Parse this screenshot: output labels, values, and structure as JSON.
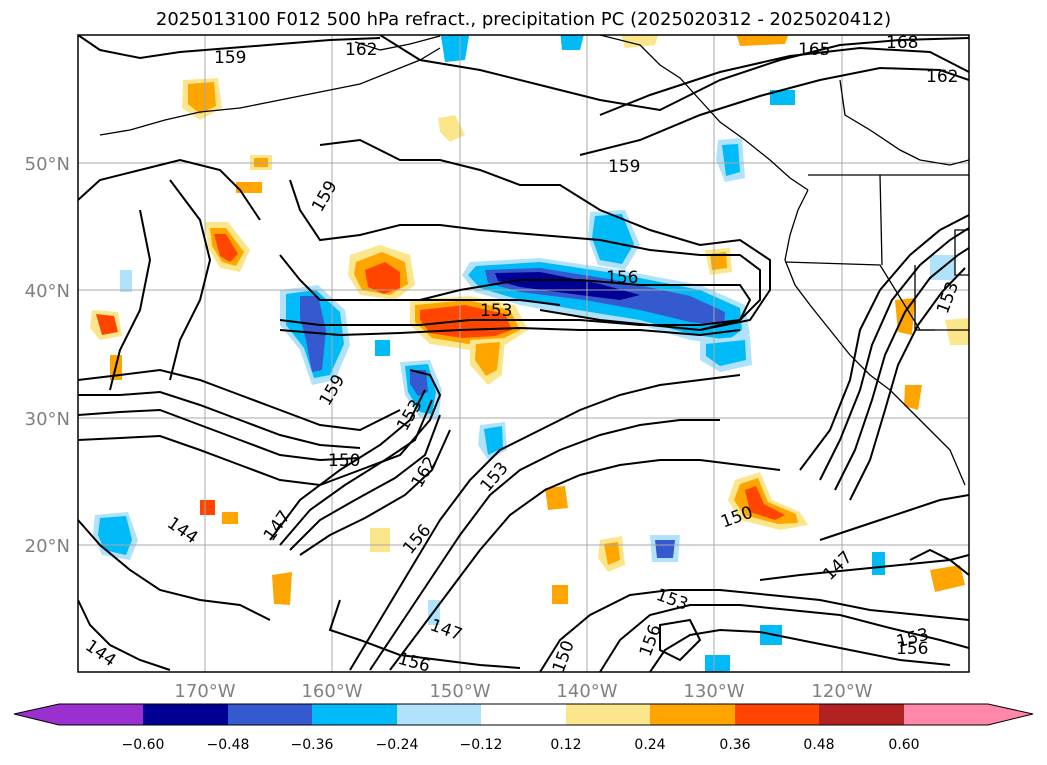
{
  "title": "2025013100 F012 500 hPa refract., precipitation PC (2025020312 - 2025020412)",
  "lat_labels": [
    "50°N",
    "40°N",
    "30°N",
    "20°N"
  ],
  "lon_labels": [
    "170°W",
    "160°W",
    "150°W",
    "140°W",
    "130°W",
    "120°W"
  ],
  "contour_labels": [
    "159",
    "162",
    "165",
    "168",
    "162",
    "159",
    "159",
    "156",
    "153",
    "153",
    "159",
    "153",
    "150",
    "162",
    "153",
    "147",
    "144",
    "156",
    "150",
    "147",
    "153",
    "147",
    "156",
    "150",
    "144",
    "156",
    "153",
    "156"
  ],
  "colorbar": {
    "tick_labels": [
      "−0.60",
      "−0.48",
      "−0.36",
      "−0.24",
      "−0.12",
      "0.12",
      "0.24",
      "0.36",
      "0.48",
      "0.60"
    ],
    "colors": [
      "#9b30d0",
      "#000094",
      "#3559cf",
      "#00bbf8",
      "#b0e2fb",
      "#ffffff",
      "#fce68c",
      "#ffa500",
      "#ff4500",
      "#b22222",
      "#ff88a8"
    ]
  }
}
